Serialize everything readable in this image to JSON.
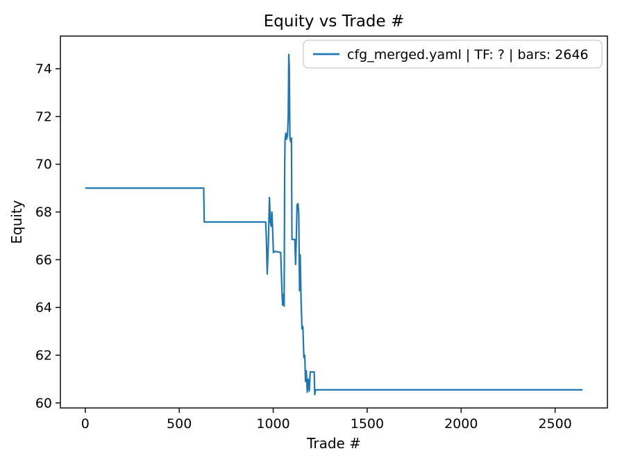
{
  "chart_data": {
    "type": "line",
    "title": "Equity vs Trade #",
    "xlabel": "Trade #",
    "ylabel": "Equity",
    "grid": false,
    "legend_position": "upper right",
    "legend": [
      "cfg_merged.yaml | TF: ? | bars: 2646"
    ],
    "line_color": "#1f77b4",
    "xlim": [
      -132.3,
      2778.3
    ],
    "ylim": [
      59.79,
      75.37
    ],
    "x_ticks": [
      0,
      500,
      1000,
      1500,
      2000,
      2500
    ],
    "y_ticks": [
      60,
      62,
      64,
      66,
      68,
      70,
      72,
      74
    ],
    "series": [
      {
        "name": "cfg_merged.yaml | TF: ? | bars: 2646",
        "points": [
          [
            0,
            69.0
          ],
          [
            630,
            69.0
          ],
          [
            633,
            67.58
          ],
          [
            960,
            67.58
          ],
          [
            964,
            66.8
          ],
          [
            968,
            65.4
          ],
          [
            974,
            66.6
          ],
          [
            980,
            68.6
          ],
          [
            985,
            67.6
          ],
          [
            989,
            67.4
          ],
          [
            993,
            68.0
          ],
          [
            997,
            67.3
          ],
          [
            1001,
            66.3
          ],
          [
            1010,
            66.35
          ],
          [
            1040,
            66.3
          ],
          [
            1046,
            64.8
          ],
          [
            1050,
            64.1
          ],
          [
            1054,
            64.55
          ],
          [
            1058,
            64.05
          ],
          [
            1061,
            70.0
          ],
          [
            1063,
            71.0
          ],
          [
            1067,
            71.3
          ],
          [
            1071,
            71.05
          ],
          [
            1076,
            71.2
          ],
          [
            1080,
            72.0
          ],
          [
            1083,
            74.6
          ],
          [
            1086,
            74.0
          ],
          [
            1089,
            71.1
          ],
          [
            1093,
            70.95
          ],
          [
            1097,
            71.1
          ],
          [
            1100,
            66.85
          ],
          [
            1115,
            66.85
          ],
          [
            1119,
            65.8
          ],
          [
            1123,
            67.0
          ],
          [
            1127,
            68.3
          ],
          [
            1132,
            68.35
          ],
          [
            1136,
            67.9
          ],
          [
            1140,
            64.7
          ],
          [
            1144,
            66.2
          ],
          [
            1148,
            64.4
          ],
          [
            1153,
            63.1
          ],
          [
            1158,
            63.2
          ],
          [
            1163,
            61.9
          ],
          [
            1168,
            62.0
          ],
          [
            1172,
            60.9
          ],
          [
            1176,
            61.35
          ],
          [
            1181,
            60.45
          ],
          [
            1186,
            61.0
          ],
          [
            1192,
            60.5
          ],
          [
            1197,
            61.3
          ],
          [
            1218,
            61.3
          ],
          [
            1221,
            60.35
          ],
          [
            1225,
            60.55
          ],
          [
            2646,
            60.55
          ]
        ]
      }
    ]
  }
}
